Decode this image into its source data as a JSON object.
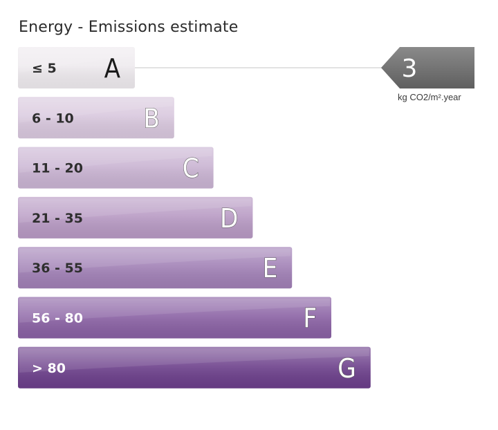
{
  "title": "Energy - Emissions estimate",
  "chart_data": {
    "type": "bar",
    "title": "Energy - Emissions estimate",
    "categories": [
      "A",
      "B",
      "C",
      "D",
      "E",
      "F",
      "G"
    ],
    "ranges": [
      "≤ 5",
      "6 - 10",
      "11 - 20",
      "21 - 35",
      "36 - 55",
      "56 - 80",
      "> 80"
    ],
    "colors": [
      "#eeeaee",
      "#d8c7dd",
      "#c9b3d2",
      "#b799c3",
      "#a07fb5",
      "#8960a3",
      "#6b3e8a"
    ],
    "value": 3,
    "value_class": "A",
    "unit": "kg CO2/m².year"
  }
}
